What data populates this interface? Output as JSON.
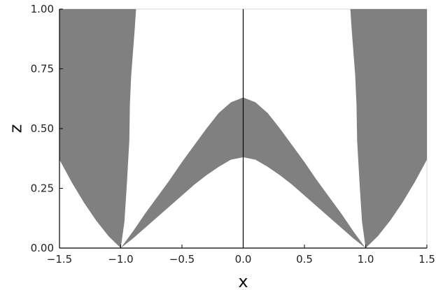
{
  "chart_data": {
    "type": "area",
    "title": "",
    "xlabel": "x",
    "ylabel": "z",
    "xlim": [
      -1.5,
      1.5
    ],
    "ylim": [
      0,
      1.0
    ],
    "grid": false,
    "legend": "none",
    "x_ticks": [
      -1.5,
      -1.0,
      -0.5,
      0.0,
      0.5,
      1.0,
      1.5
    ],
    "x_tick_labels": [
      "−1.5",
      "−1.0",
      "−0.5",
      "0.0",
      "0.5",
      "1.0",
      "1.5"
    ],
    "y_ticks": [
      0.0,
      0.25,
      0.5,
      0.75,
      1.0
    ],
    "y_tick_labels": [
      "0.00",
      "0.25",
      "0.50",
      "0.75",
      "1.00"
    ],
    "vertical_line_x": 0.0,
    "colors": {
      "fill": "#808080",
      "axis": "#000000",
      "frame": "#d9d9d9",
      "background": "#ffffff"
    },
    "regions": [
      {
        "name": "",
        "outline": [
          [
            -1.5,
            1.0
          ],
          [
            -1.5,
            0.37
          ],
          [
            -1.4,
            0.275
          ],
          [
            -1.3,
            0.19
          ],
          [
            -1.2,
            0.115
          ],
          [
            -1.1,
            0.05
          ],
          [
            -1.0,
            0.0
          ],
          [
            -0.97,
            0.11
          ],
          [
            -0.95,
            0.27
          ],
          [
            -0.93,
            0.45
          ],
          [
            -0.925,
            0.6
          ],
          [
            -0.915,
            0.72
          ],
          [
            -0.9,
            0.82
          ],
          [
            -0.885,
            0.92
          ],
          [
            -0.875,
            1.0
          ]
        ]
      },
      {
        "name": "",
        "outline": [
          [
            -1.0,
            0.0
          ],
          [
            -0.9,
            0.07
          ],
          [
            -0.8,
            0.145
          ],
          [
            -0.7,
            0.215
          ],
          [
            -0.6,
            0.285
          ],
          [
            -0.5,
            0.36
          ],
          [
            -0.4,
            0.43
          ],
          [
            -0.3,
            0.5
          ],
          [
            -0.2,
            0.565
          ],
          [
            -0.1,
            0.61
          ],
          [
            0.0,
            0.63
          ],
          [
            0.1,
            0.61
          ],
          [
            0.2,
            0.565
          ],
          [
            0.3,
            0.5
          ],
          [
            0.4,
            0.43
          ],
          [
            0.5,
            0.36
          ],
          [
            0.6,
            0.285
          ],
          [
            0.7,
            0.215
          ],
          [
            0.8,
            0.145
          ],
          [
            0.9,
            0.07
          ],
          [
            1.0,
            0.0
          ],
          [
            0.9,
            0.04
          ],
          [
            0.8,
            0.085
          ],
          [
            0.7,
            0.13
          ],
          [
            0.6,
            0.175
          ],
          [
            0.5,
            0.22
          ],
          [
            0.4,
            0.265
          ],
          [
            0.3,
            0.305
          ],
          [
            0.2,
            0.34
          ],
          [
            0.1,
            0.37
          ],
          [
            0.0,
            0.38
          ],
          [
            -0.1,
            0.37
          ],
          [
            -0.2,
            0.34
          ],
          [
            -0.3,
            0.305
          ],
          [
            -0.4,
            0.265
          ],
          [
            -0.5,
            0.22
          ],
          [
            -0.6,
            0.175
          ],
          [
            -0.7,
            0.13
          ],
          [
            -0.8,
            0.085
          ],
          [
            -0.9,
            0.04
          ]
        ]
      },
      {
        "name": "",
        "outline": [
          [
            1.5,
            1.0
          ],
          [
            1.5,
            0.37
          ],
          [
            1.4,
            0.275
          ],
          [
            1.3,
            0.19
          ],
          [
            1.2,
            0.115
          ],
          [
            1.1,
            0.05
          ],
          [
            1.0,
            0.0
          ],
          [
            0.97,
            0.11
          ],
          [
            0.95,
            0.27
          ],
          [
            0.93,
            0.45
          ],
          [
            0.925,
            0.6
          ],
          [
            0.915,
            0.72
          ],
          [
            0.9,
            0.82
          ],
          [
            0.885,
            0.92
          ],
          [
            0.875,
            1.0
          ]
        ]
      }
    ]
  }
}
